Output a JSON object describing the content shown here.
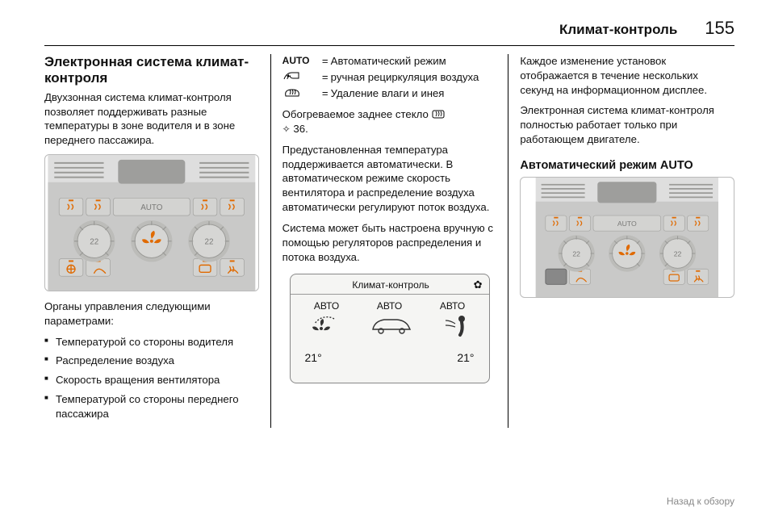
{
  "header": {
    "section": "Климат-контроль",
    "page": "155"
  },
  "col1": {
    "h": "Электронная система климат-контроля",
    "p1": "Двухзонная система климат-контроля позволяет поддерживать разные температуры в зоне водителя и в зоне переднего пассажира.",
    "ctrls_intro": "Органы управления следующими параметрами:",
    "items": [
      "Температурой со стороны водителя",
      "Распределение воздуха",
      "Скорость вращения вентилятора",
      "Температурой со стороны переднего пассажира"
    ]
  },
  "col2": {
    "legend": [
      {
        "sym": "AUTO",
        "txt": "Автоматический режим"
      },
      {
        "sym": "recirc",
        "txt": "ручная рециркуляция воздуха"
      },
      {
        "sym": "defrost",
        "txt": "Удаление влаги и инея"
      }
    ],
    "p_rear": "Обогреваемое заднее стекло",
    "p_ref": "36.",
    "p_preset": "Предустановленная температура поддерживается автоматически. В автоматическом режиме скорость вентилятора и распределение воздуха автоматически регулируют поток воздуха.",
    "p_manual": "Система может быть настроена вручную с помощью регуляторов распределения и потока воздуха.",
    "lcd": {
      "title": "Климат-контроль",
      "auto": "АВТО",
      "t_left": "21°",
      "t_right": "21°"
    }
  },
  "col3": {
    "p1": "Каждое изменение установок отображается в течение нескольких секунд на информационном дисплее.",
    "p2": "Электронная система климат-контроля полностью работает только при работающем двигателе.",
    "h3": "Автоматический режим AUTO"
  },
  "footer": "Назад к обзору",
  "panel": {
    "bg_top": "#dedede",
    "bg_mid": "#c9c9c8",
    "btn": "#d3d3d1",
    "btn_dk": "#bcbcb9",
    "dial": "#d6d6d4",
    "dial_ring": "#9a9a97",
    "led": "#e06a00",
    "text": "#7a7a78",
    "auto": "AUTO",
    "t22": "22"
  }
}
